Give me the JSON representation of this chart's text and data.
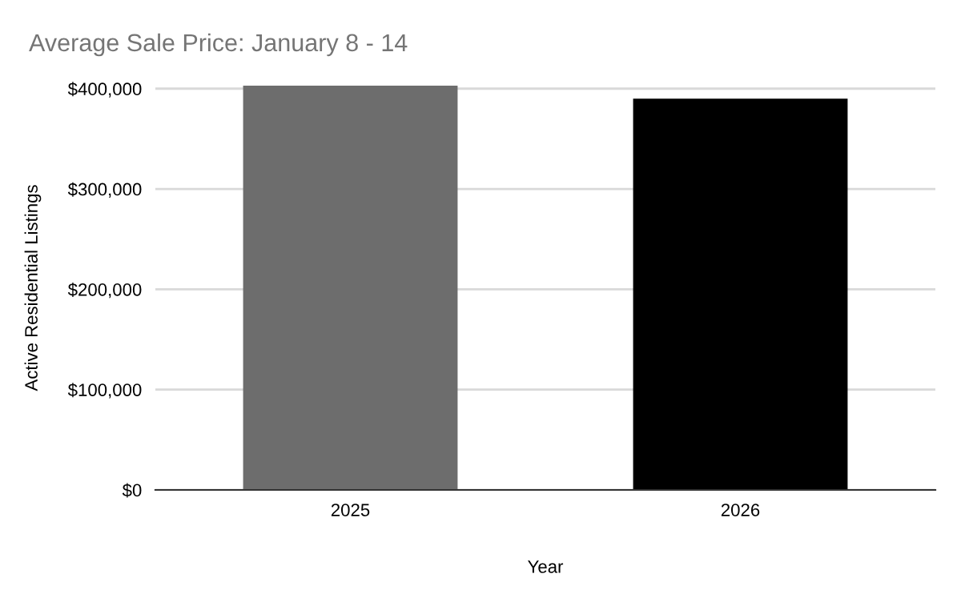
{
  "chart_data": {
    "type": "bar",
    "title": "Average Sale Price: January 8 - 14",
    "xlabel": "Year",
    "ylabel": "Active Residential Listings",
    "categories": [
      "2025",
      "2026"
    ],
    "values": [
      403000,
      390000
    ],
    "colors": [
      "#6d6d6d",
      "#000000"
    ],
    "ylim": [
      0,
      403000
    ],
    "yticks": [
      {
        "value": 0,
        "label": "$0"
      },
      {
        "value": 100000,
        "label": "$100,000"
      },
      {
        "value": 200000,
        "label": "$200,000"
      },
      {
        "value": 300000,
        "label": "$300,000"
      },
      {
        "value": 400000,
        "label": "$400,000"
      }
    ],
    "grid": "y",
    "legend": false
  }
}
